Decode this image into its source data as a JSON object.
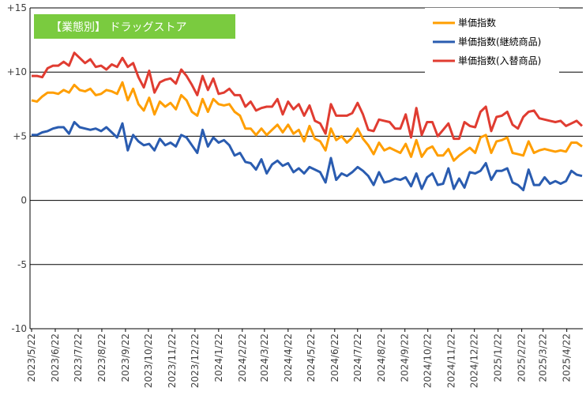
{
  "chart_data": {
    "type": "line",
    "label": "【業態別】 ドラッグストア",
    "colors": {
      "label_bg": "#7ACB3F",
      "grid": "#000000"
    },
    "ylim": [
      -10,
      15
    ],
    "yticks": [
      "+15",
      "+10",
      "+5",
      "0",
      "-5",
      "-10"
    ],
    "grid": true,
    "legend_position": "top-right",
    "x": [
      "2023/5/22",
      "2023/5/29",
      "2023/6/5",
      "2023/6/12",
      "2023/6/19",
      "2023/6/26",
      "2023/7/3",
      "2023/7/10",
      "2023/7/17",
      "2023/7/24",
      "2023/7/31",
      "2023/8/7",
      "2023/8/14",
      "2023/8/21",
      "2023/8/28",
      "2023/9/4",
      "2023/9/11",
      "2023/9/18",
      "2023/9/25",
      "2023/10/2",
      "2023/10/9",
      "2023/10/16",
      "2023/10/23",
      "2023/10/30",
      "2023/11/6",
      "2023/11/13",
      "2023/11/20",
      "2023/11/27",
      "2023/12/4",
      "2023/12/11",
      "2023/12/18",
      "2023/12/25",
      "2024/1/1",
      "2024/1/8",
      "2024/1/15",
      "2024/1/22",
      "2024/1/29",
      "2024/2/5",
      "2024/2/12",
      "2024/2/19",
      "2024/2/26",
      "2024/3/4",
      "2024/3/11",
      "2024/3/18",
      "2024/3/25",
      "2024/4/1",
      "2024/4/8",
      "2024/4/15",
      "2024/4/22",
      "2024/4/29",
      "2024/5/6",
      "2024/5/13",
      "2024/5/20",
      "2024/5/27",
      "2024/6/3",
      "2024/6/10",
      "2024/6/17",
      "2024/6/24",
      "2024/7/1",
      "2024/7/8",
      "2024/7/15",
      "2024/7/22",
      "2024/7/29",
      "2024/8/5",
      "2024/8/12",
      "2024/8/19",
      "2024/8/26",
      "2024/9/2",
      "2024/9/9",
      "2024/9/16",
      "2024/9/23",
      "2024/9/30",
      "2024/10/7",
      "2024/10/14",
      "2024/10/21",
      "2024/10/28",
      "2024/11/4",
      "2024/11/11",
      "2024/11/18",
      "2024/11/25",
      "2024/12/2",
      "2024/12/9",
      "2024/12/16",
      "2024/12/23",
      "2024/12/30",
      "2025/1/6",
      "2025/1/13",
      "2025/1/20",
      "2025/1/27",
      "2025/2/3",
      "2025/2/10",
      "2025/2/17",
      "2025/2/24",
      "2025/3/3",
      "2025/3/10",
      "2025/3/17",
      "2025/3/24",
      "2025/3/31",
      "2025/4/7",
      "2025/4/14",
      "2025/4/21",
      "2025/4/28",
      "2025/5/5",
      "2025/5/12"
    ],
    "xtick_labels": [
      "2023/5/22",
      "2023/6/22",
      "2023/7/22",
      "2023/8/22",
      "2023/9/22",
      "2023/10/22",
      "2023/11/22",
      "2023/12/22",
      "2024/1/22",
      "2024/2/22",
      "2024/3/22",
      "2024/4/22",
      "2024/5/22",
      "2024/6/22",
      "2024/7/22",
      "2024/8/22",
      "2024/9/22",
      "2024/10/22",
      "2024/11/22",
      "2024/12/22",
      "2025/1/22",
      "2025/2/22",
      "2025/3/22",
      "2025/4/22"
    ],
    "series": [
      {
        "name": "単価指数",
        "color": "#FF9E00",
        "values": [
          7.8,
          7.7,
          8.1,
          8.4,
          8.4,
          8.3,
          8.6,
          8.4,
          9.0,
          8.6,
          8.5,
          8.7,
          8.2,
          8.3,
          8.6,
          8.5,
          8.3,
          9.2,
          7.8,
          8.7,
          7.5,
          7.0,
          8.0,
          6.7,
          7.7,
          7.3,
          7.6,
          7.1,
          8.2,
          7.8,
          6.9,
          6.6,
          7.9,
          6.9,
          7.9,
          7.5,
          7.4,
          7.5,
          6.9,
          6.6,
          5.6,
          5.6,
          5.1,
          5.6,
          5.1,
          5.5,
          5.9,
          5.3,
          5.9,
          5.2,
          5.5,
          4.6,
          5.8,
          4.8,
          4.6,
          3.9,
          5.6,
          4.7,
          5.0,
          4.5,
          4.9,
          5.6,
          4.8,
          4.3,
          3.6,
          4.5,
          3.9,
          4.1,
          3.9,
          3.7,
          4.4,
          3.4,
          4.7,
          3.4,
          4.0,
          4.2,
          3.5,
          3.5,
          4.0,
          3.1,
          3.5,
          3.8,
          4.1,
          3.7,
          4.9,
          5.1,
          3.7,
          4.6,
          4.7,
          4.9,
          3.7,
          3.6,
          3.5,
          4.6,
          3.7,
          3.9,
          4.0,
          3.9,
          3.8,
          3.9,
          3.8,
          4.5,
          4.5,
          4.2
        ]
      },
      {
        "name": "単価指数(継続商品)",
        "color": "#2A5CB0",
        "values": [
          5.1,
          5.1,
          5.3,
          5.4,
          5.6,
          5.7,
          5.7,
          5.2,
          6.1,
          5.7,
          5.6,
          5.5,
          5.6,
          5.4,
          5.7,
          5.3,
          4.9,
          6.0,
          3.9,
          5.1,
          4.6,
          4.3,
          4.4,
          3.9,
          4.8,
          4.3,
          4.5,
          4.2,
          5.1,
          4.9,
          4.3,
          3.7,
          5.5,
          4.2,
          4.9,
          4.5,
          4.7,
          4.3,
          3.5,
          3.7,
          3.0,
          2.9,
          2.4,
          3.2,
          2.1,
          2.8,
          3.1,
          2.7,
          2.9,
          2.2,
          2.5,
          2.1,
          2.6,
          2.4,
          2.2,
          1.4,
          3.3,
          1.6,
          2.1,
          1.9,
          2.2,
          2.6,
          2.3,
          1.9,
          1.2,
          2.2,
          1.4,
          1.5,
          1.7,
          1.6,
          1.8,
          1.1,
          2.1,
          0.9,
          1.8,
          2.1,
          1.2,
          1.3,
          2.5,
          0.9,
          1.7,
          1.0,
          2.2,
          2.1,
          2.3,
          2.9,
          1.6,
          2.3,
          2.3,
          2.5,
          1.4,
          1.2,
          0.8,
          2.4,
          1.2,
          1.2,
          1.8,
          1.3,
          1.5,
          1.3,
          1.5,
          2.3,
          2.0,
          1.9
        ]
      },
      {
        "name": "単価指数(入替商品)",
        "color": "#E03C31",
        "values": [
          9.7,
          9.7,
          9.6,
          10.3,
          10.5,
          10.5,
          10.8,
          10.5,
          11.5,
          11.1,
          10.7,
          11.0,
          10.4,
          10.5,
          10.2,
          10.6,
          10.4,
          11.1,
          10.4,
          10.7,
          9.6,
          8.8,
          10.1,
          8.4,
          9.2,
          9.4,
          9.5,
          9.1,
          10.2,
          9.7,
          9.0,
          8.2,
          9.7,
          8.6,
          9.5,
          8.3,
          8.4,
          8.7,
          8.2,
          8.2,
          7.3,
          7.7,
          7.0,
          7.2,
          7.3,
          7.3,
          7.9,
          6.7,
          7.7,
          7.1,
          7.5,
          6.6,
          7.4,
          6.2,
          6.0,
          5.2,
          7.5,
          6.6,
          6.6,
          6.6,
          6.8,
          7.6,
          6.7,
          5.5,
          5.4,
          6.3,
          6.2,
          6.1,
          5.6,
          5.6,
          6.7,
          4.9,
          7.2,
          5.1,
          6.1,
          6.1,
          5.0,
          5.5,
          6.0,
          4.8,
          4.8,
          6.1,
          5.8,
          5.7,
          6.9,
          7.3,
          5.4,
          6.5,
          6.6,
          6.9,
          5.9,
          5.6,
          6.5,
          6.9,
          7.0,
          6.4,
          6.3,
          6.2,
          6.1,
          6.2,
          5.8,
          6.0,
          6.2,
          5.8
        ]
      }
    ]
  }
}
